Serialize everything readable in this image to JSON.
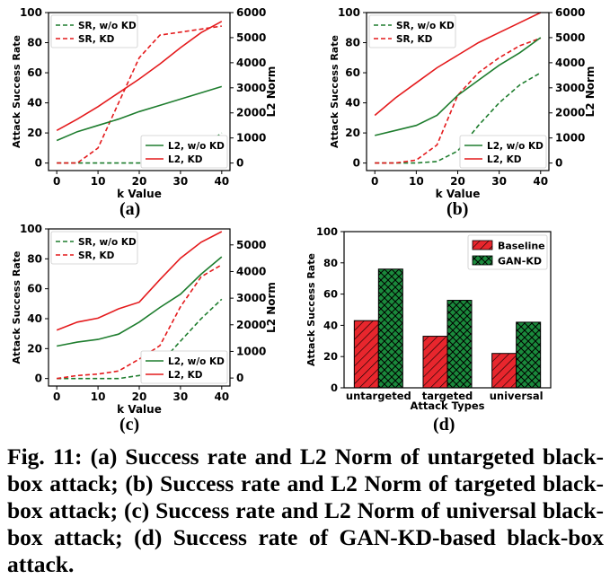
{
  "figure": {
    "sublabels": [
      "(a)",
      "(b)",
      "(c)",
      "(d)"
    ],
    "caption": "Fig. 11: (a) Success rate and L2 Norm of untargeted black-box attack; (b) Success rate and L2 Norm of targeted black-box attack; (c) Success rate and L2 Norm of universal black-box attack; (d) Success rate of GAN-KD-based black-box attack."
  },
  "colors": {
    "green": "#1e7d2e",
    "red": "#e41a1c",
    "bar_red": "#e8262d",
    "bar_green": "#1a8a3c"
  },
  "chart_data": [
    {
      "panel": "(a)",
      "type": "line",
      "xlabel": "k Value",
      "ylabel": "Attack Success Rate",
      "y2label": "L2 Norm",
      "x": [
        0,
        5,
        10,
        15,
        20,
        25,
        30,
        35,
        40
      ],
      "xticks": [
        0,
        10,
        20,
        30,
        40
      ],
      "yticks": [
        0,
        20,
        40,
        60,
        80,
        100
      ],
      "y2ticks": [
        0,
        1000,
        2000,
        3000,
        4000,
        5000,
        6000
      ],
      "xlim": [
        -2,
        42
      ],
      "ylim": [
        -5,
        100
      ],
      "y2lim": [
        -300,
        6000
      ],
      "series": [
        {
          "name": "SR, w/o KD",
          "axis": "left",
          "style": "dashed",
          "color": "green",
          "values": [
            0,
            0,
            0,
            0,
            0,
            1,
            3,
            10,
            20
          ]
        },
        {
          "name": "SR, KD",
          "axis": "left",
          "style": "dashed",
          "color": "red",
          "values": [
            0,
            0,
            10,
            40,
            70,
            85,
            87,
            89,
            91
          ]
        },
        {
          "name": "L2, w/o KD",
          "axis": "right",
          "style": "solid",
          "color": "green",
          "values": [
            900,
            1250,
            1500,
            1750,
            2050,
            2300,
            2550,
            2800,
            3050
          ]
        },
        {
          "name": "L2, KD",
          "axis": "right",
          "style": "solid",
          "color": "red",
          "values": [
            1300,
            1750,
            2250,
            2800,
            3350,
            3950,
            4600,
            5200,
            5650
          ]
        }
      ],
      "legends": [
        {
          "loc": "upper-left",
          "entries": [
            0,
            1
          ]
        },
        {
          "loc": "lower-right",
          "entries": [
            2,
            3
          ]
        }
      ]
    },
    {
      "panel": "(b)",
      "type": "line",
      "xlabel": "k Value",
      "ylabel": "Attack Success Rate",
      "y2label": "L2 Norm",
      "x": [
        0,
        5,
        10,
        15,
        20,
        25,
        30,
        35,
        40
      ],
      "xticks": [
        0,
        10,
        20,
        30,
        40
      ],
      "yticks": [
        0,
        20,
        40,
        60,
        80,
        100
      ],
      "y2ticks": [
        0,
        1000,
        2000,
        3000,
        4000,
        5000,
        6000
      ],
      "xlim": [
        -2,
        42
      ],
      "ylim": [
        -5,
        100
      ],
      "y2lim": [
        -300,
        6000
      ],
      "series": [
        {
          "name": "SR, w/o KD",
          "axis": "left",
          "style": "dashed",
          "color": "green",
          "values": [
            0,
            0,
            0,
            1,
            8,
            25,
            40,
            52,
            60
          ]
        },
        {
          "name": "SR, KD",
          "axis": "left",
          "style": "dashed",
          "color": "red",
          "values": [
            0,
            0,
            2,
            12,
            45,
            60,
            70,
            78,
            83
          ]
        },
        {
          "name": "L2, w/o KD",
          "axis": "right",
          "style": "solid",
          "color": "green",
          "values": [
            1100,
            1300,
            1500,
            1900,
            2700,
            3300,
            3900,
            4400,
            5000
          ]
        },
        {
          "name": "L2, KD",
          "axis": "right",
          "style": "solid",
          "color": "red",
          "values": [
            1900,
            2600,
            3200,
            3800,
            4300,
            4800,
            5200,
            5600,
            6000
          ]
        }
      ],
      "legends": [
        {
          "loc": "upper-left",
          "entries": [
            0,
            1
          ]
        },
        {
          "loc": "lower-right",
          "entries": [
            2,
            3
          ]
        }
      ]
    },
    {
      "panel": "(c)",
      "type": "line",
      "xlabel": "k Value",
      "ylabel": "Attack Success Rate",
      "y2label": "L2 Norm",
      "x": [
        0,
        5,
        10,
        15,
        20,
        25,
        30,
        35,
        40
      ],
      "xticks": [
        0,
        10,
        20,
        30,
        40
      ],
      "yticks": [
        0,
        20,
        40,
        60,
        80,
        100
      ],
      "y2ticks": [
        0,
        1000,
        2000,
        3000,
        4000,
        5000
      ],
      "xlim": [
        -2,
        42
      ],
      "ylim": [
        -5,
        100
      ],
      "y2lim": [
        -300,
        5600
      ],
      "series": [
        {
          "name": "SR, w/o KD",
          "axis": "left",
          "style": "dashed",
          "color": "green",
          "values": [
            0,
            0,
            0,
            0,
            2,
            10,
            25,
            40,
            53
          ]
        },
        {
          "name": "SR, KD",
          "axis": "left",
          "style": "dashed",
          "color": "red",
          "values": [
            0,
            2,
            3,
            5,
            13,
            22,
            48,
            68,
            76
          ]
        },
        {
          "name": "L2, w/o KD",
          "axis": "right",
          "style": "solid",
          "color": "green",
          "values": [
            1200,
            1350,
            1450,
            1650,
            2100,
            2650,
            3150,
            3900,
            4550
          ]
        },
        {
          "name": "L2, KD",
          "axis": "right",
          "style": "solid",
          "color": "red",
          "values": [
            1800,
            2100,
            2250,
            2600,
            2850,
            3700,
            4500,
            5100,
            5500
          ]
        }
      ],
      "legends": [
        {
          "loc": "upper-left",
          "entries": [
            0,
            1
          ]
        },
        {
          "loc": "lower-right",
          "entries": [
            2,
            3
          ]
        }
      ]
    },
    {
      "panel": "(d)",
      "type": "bar",
      "xlabel": "Attack Types",
      "ylabel": "Attack Success Rate",
      "categories": [
        "untargeted",
        "targeted",
        "universal"
      ],
      "yticks": [
        0,
        20,
        40,
        60,
        80,
        100
      ],
      "ylim": [
        0,
        100
      ],
      "series": [
        {
          "name": "Baseline",
          "color": "bar_red",
          "hatch": "diagonal",
          "values": [
            43,
            33,
            22
          ]
        },
        {
          "name": "GAN-KD",
          "color": "bar_green",
          "hatch": "cross",
          "values": [
            76,
            56,
            42
          ]
        }
      ],
      "legend": "upper-right"
    }
  ]
}
